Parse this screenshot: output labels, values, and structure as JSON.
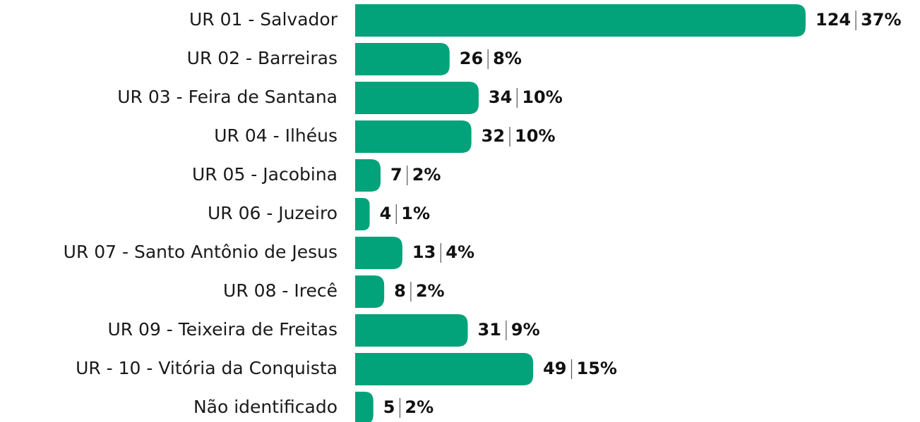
{
  "chart_data": {
    "type": "bar",
    "orientation": "horizontal",
    "color": "#02a37b",
    "categories": [
      "UR 01 - Salvador",
      "UR 02 - Barreiras",
      "UR 03 - Feira de Santana",
      "UR 04 - Ilhéus",
      "UR 05 - Jacobina",
      "UR 06 - Juzeiro",
      "UR 07 - Santo Antônio de Jesus",
      "UR 08 - Irecê",
      "UR 09 - Teixeira de Freitas",
      "UR - 10 - Vitória da Conquista",
      "Não identificado"
    ],
    "values": [
      124,
      26,
      34,
      32,
      7,
      4,
      13,
      8,
      31,
      49,
      5
    ],
    "shares": {
      "values": [
        37,
        8,
        10,
        10,
        2,
        1,
        4,
        2,
        9,
        15,
        2
      ],
      "value_labels": [
        "37%",
        "8%",
        "10%",
        "10%",
        "2%",
        "1%",
        "4%",
        "2%",
        "9%",
        "15%",
        "2%"
      ]
    }
  }
}
